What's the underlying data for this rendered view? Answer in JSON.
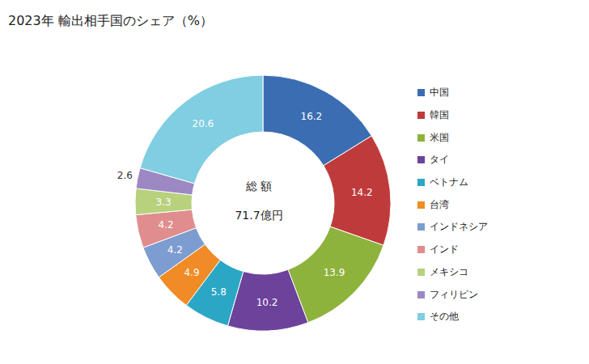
{
  "chart_data": {
    "type": "pie",
    "title": "2023年 輸出相手国のシェア（%）",
    "categories": [
      "中国",
      "韓国",
      "米国",
      "タイ",
      "ベトナム",
      "台湾",
      "インドネシア",
      "インド",
      "メキシコ",
      "フィリピン",
      "その他"
    ],
    "values": [
      16.2,
      14.2,
      13.9,
      10.2,
      5.8,
      4.9,
      4.2,
      4.2,
      3.3,
      2.6,
      20.6
    ],
    "colors": [
      "#3b6db3",
      "#bf3b3b",
      "#8db33c",
      "#6c429b",
      "#2ba7c5",
      "#f08b25",
      "#7d9dd1",
      "#e08d8d",
      "#b7d17d",
      "#9c88c3",
      "#80cee1"
    ],
    "data_labels": true,
    "legend": "right",
    "annotations": [
      "総 額",
      "71.7億円"
    ]
  }
}
